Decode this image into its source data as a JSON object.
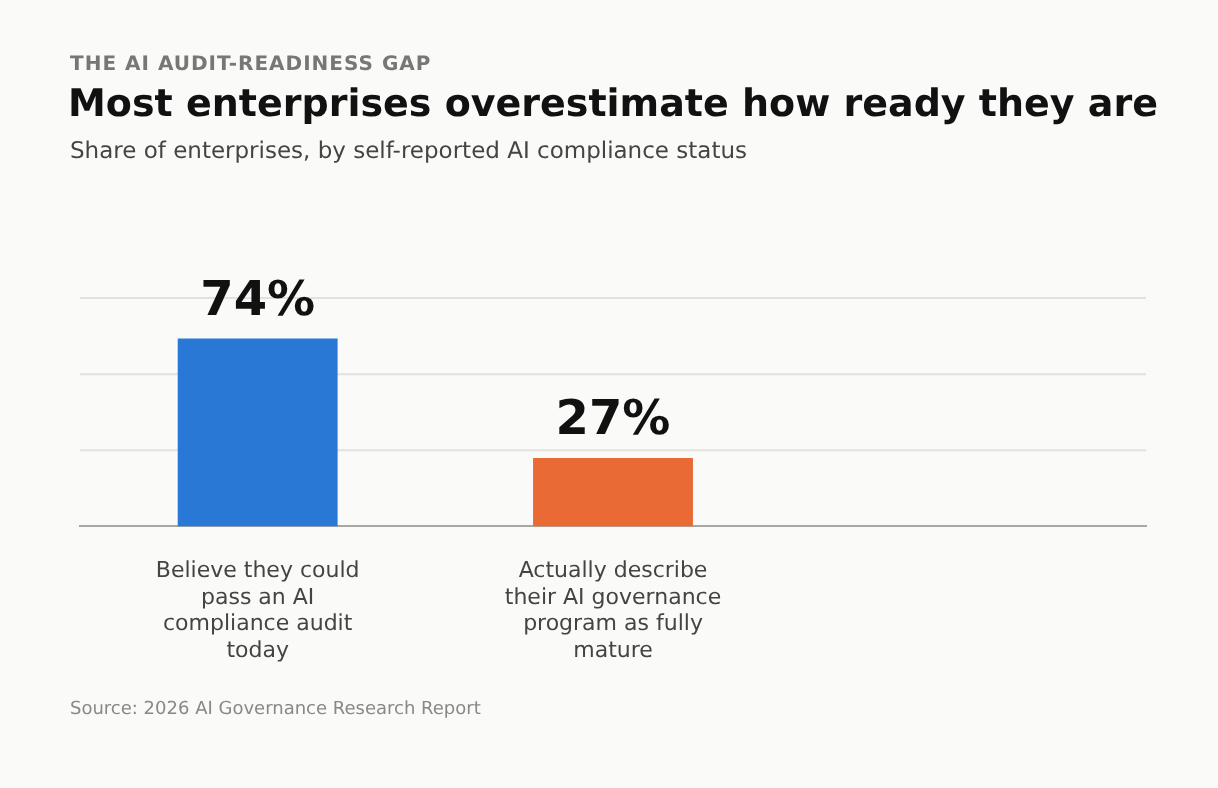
{
  "chart_data": {
    "type": "bar",
    "title": "Most enterprises overestimate how ready they are",
    "subtitle": "Share of enterprises, by self-reported AI compliance status",
    "annotations": [
      "THE AI AUDIT-READINESS GAP",
      "Source: 2026 AI Governance Research Report"
    ],
    "categories": [
      "Believe they could pass an AI compliance audit today",
      "Actually describe their AI governance program as fully mature"
    ],
    "values": [
      74,
      27
    ],
    "colors": [
      "#2a78d6",
      "#ea6a35"
    ],
    "value_labels": [
      "74%",
      "27%"
    ],
    "ref_lines": [
      {
        "axis": "y",
        "value": 30,
        "color": "#e2e2dc"
      },
      {
        "axis": "y",
        "value": 60,
        "color": "#e2e2dc"
      },
      {
        "axis": "y",
        "value": 90,
        "color": "#e2e2dc"
      }
    ],
    "legend": false,
    "tick_labels": "x"
  }
}
